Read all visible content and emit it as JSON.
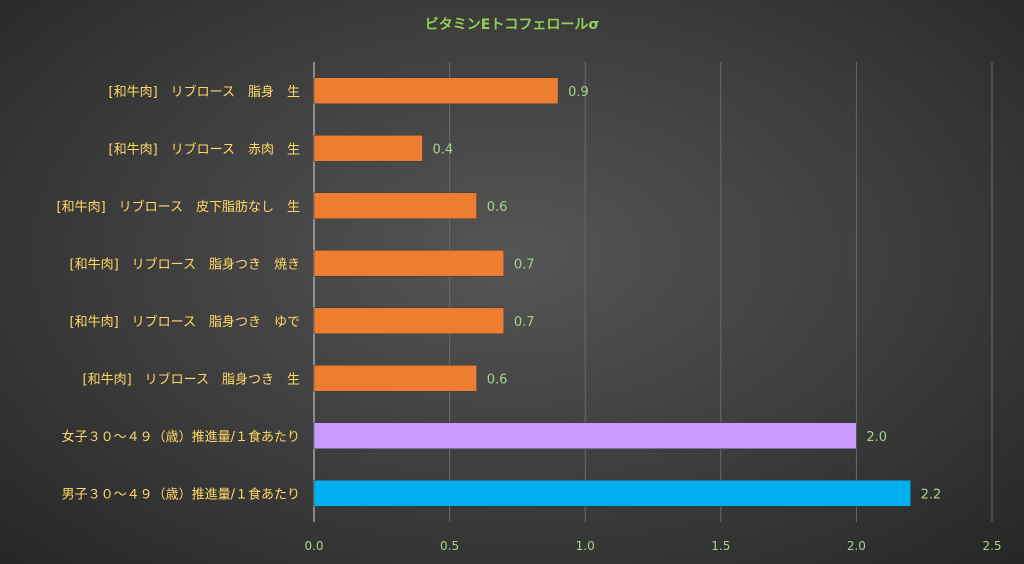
{
  "chart_data": {
    "type": "bar",
    "orientation": "horizontal",
    "title": "ビタミンEトコフェロールσ",
    "xlabel": "",
    "ylabel": "",
    "xlim": [
      0,
      2.5
    ],
    "x_ticks": [
      "0.0",
      "0.5",
      "1.0",
      "1.5",
      "2.0",
      "2.5"
    ],
    "grid": true,
    "legend": "none",
    "categories": [
      "[和牛肉]　リブロース　脂身　生",
      "[和牛肉]　リブロース　赤肉　生",
      "[和牛肉]　リブロース　皮下脂肪なし　生",
      "[和牛肉]　リブロース　脂身つき　焼き",
      "[和牛肉]　リブロース　脂身つき　ゆで",
      "[和牛肉]　リブロース　脂身つき　生",
      "女子３０～４９（歳）推進量/１食あたり",
      "男子３０～４９（歳）推進量/１食あたり"
    ],
    "values": [
      0.9,
      0.4,
      0.6,
      0.7,
      0.7,
      0.6,
      2.0,
      2.2
    ],
    "value_labels": [
      "0.9",
      "0.4",
      "0.6",
      "0.7",
      "0.7",
      "0.6",
      "2.0",
      "2.2"
    ],
    "colors": [
      "#ed7d31",
      "#ed7d31",
      "#ed7d31",
      "#ed7d31",
      "#ed7d31",
      "#ed7d31",
      "#cc99ff",
      "#00b0f0"
    ]
  }
}
